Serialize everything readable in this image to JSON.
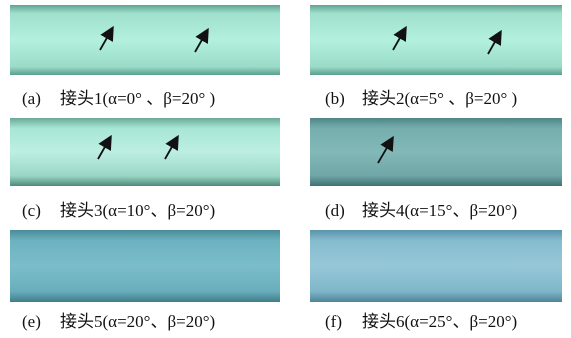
{
  "panels": [
    {
      "label": "(a)",
      "caption": "接头1(α=0° 、β=20° )"
    },
    {
      "label": "(b)",
      "caption": "接头2(α=5° 、β=20° )"
    },
    {
      "label": "(c)",
      "caption": "接头3(α=10°、β=20°)"
    },
    {
      "label": "(d)",
      "caption": "接头4(α=15°、β=20°)"
    },
    {
      "label": "(e)",
      "caption": "接头5(α=20°、β=20°)"
    },
    {
      "label": "(f)",
      "caption": "接头6(α=25°、β=20°)"
    }
  ]
}
